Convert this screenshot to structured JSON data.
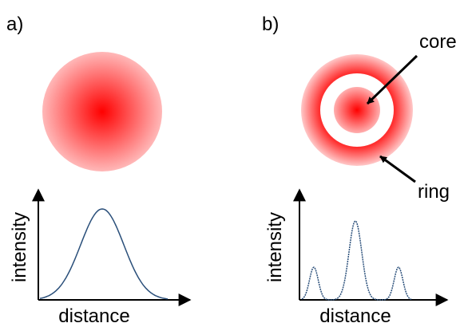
{
  "panel_a": {
    "label": "a)",
    "y_axis_label": "intensity",
    "x_axis_label": "distance"
  },
  "panel_b": {
    "label": "b)",
    "y_axis_label": "intensity",
    "x_axis_label": "distance",
    "core_label": "core",
    "ring_label": "ring"
  }
}
